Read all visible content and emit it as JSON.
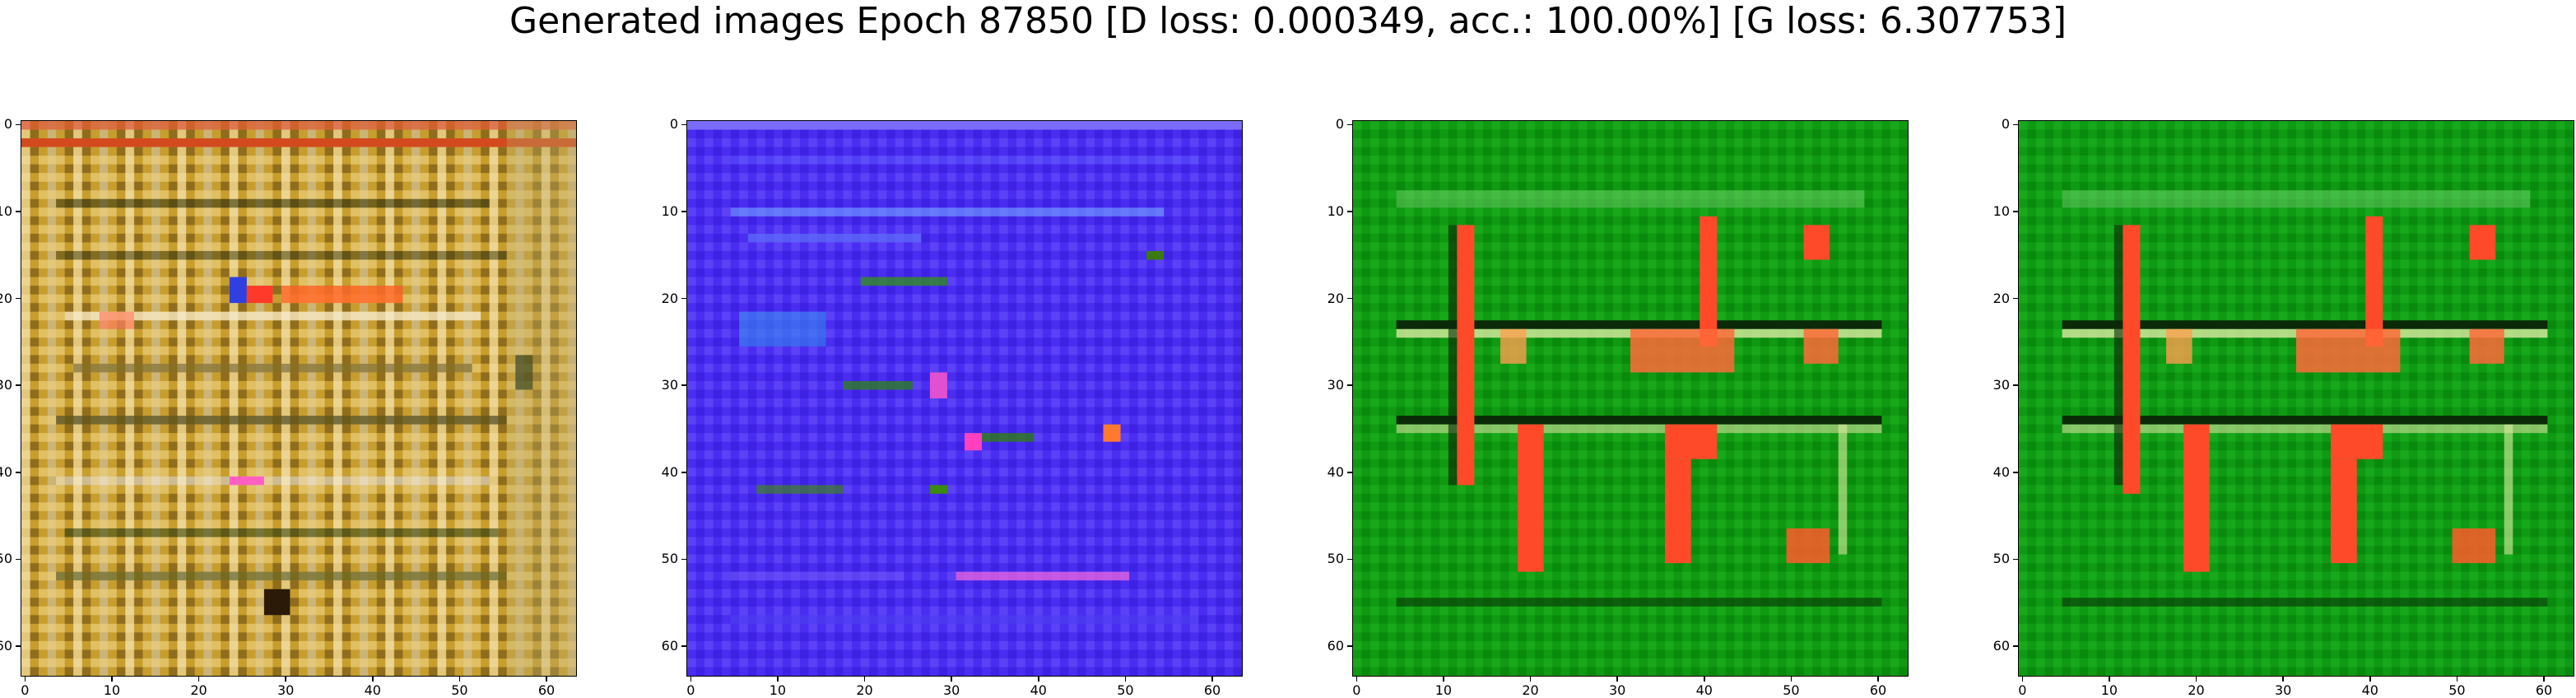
{
  "figure": {
    "title": "Generated images Epoch 87850 [D loss: 0.000349, acc.: 100.00%] [G loss: 6.307753]"
  },
  "axes": {
    "x_ticks": [
      "0",
      "10",
      "20",
      "30",
      "40",
      "50",
      "60"
    ],
    "y_ticks": [
      "0",
      "10",
      "20",
      "30",
      "40",
      "50",
      "60"
    ]
  },
  "panels": [
    {
      "name": "image-1",
      "base_color": "#c9a233",
      "accent_color": "#ff5a2a"
    },
    {
      "name": "image-2",
      "base_color": "#4a2ef0",
      "accent_color": "#3fb0ff"
    },
    {
      "name": "image-3",
      "base_color": "#129a12",
      "accent_color": "#ff4a2a"
    },
    {
      "name": "image-4",
      "base_color": "#119a15",
      "accent_color": "#ff4a2a"
    }
  ]
}
